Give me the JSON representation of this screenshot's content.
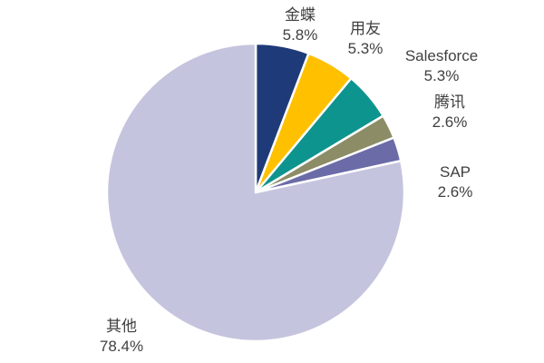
{
  "chart_data": {
    "type": "pie",
    "title": "",
    "background": "#FFFFFF",
    "label_color": "#404040",
    "separator_color": "#FFFFFF",
    "start_angle_deg": 0,
    "direction": "clockwise",
    "legend_position": "none",
    "label_format": "name + percent, outside",
    "slices": [
      {
        "name": "金蝶",
        "value": 5.8,
        "label": "5.8%",
        "color": "#1F3A78"
      },
      {
        "name": "用友",
        "value": 5.3,
        "label": "5.3%",
        "color": "#FFC000"
      },
      {
        "name": "Salesforce",
        "value": 5.3,
        "label": "5.3%",
        "color": "#0E948E"
      },
      {
        "name": "腾讯",
        "value": 2.6,
        "label": "2.6%",
        "color": "#8C8C66"
      },
      {
        "name": "SAP",
        "value": 2.6,
        "label": "2.6%",
        "color": "#6B6BA8"
      },
      {
        "name": "其他",
        "value": 78.4,
        "label": "78.4%",
        "color": "#C5C4DE"
      }
    ]
  }
}
